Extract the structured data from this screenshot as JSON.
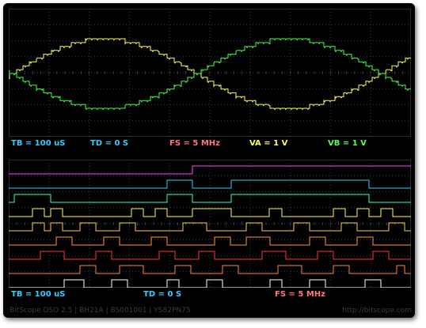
{
  "window": {
    "frame_color": "#000000"
  },
  "analog": {
    "readouts": {
      "tb": "TB = 100 uS",
      "td": "TD = 0 S",
      "fs": "FS = 5 MHz",
      "va": "VA = 1 V",
      "vb": "VB = 1 V"
    },
    "channel_a_color": "#ffff55",
    "channel_b_color": "#44ff44",
    "grid_color": "#3a3a3a"
  },
  "logic": {
    "readouts": {
      "tb": "TB = 100 uS",
      "td": "TD = 0 S",
      "fs": "FS = 5 MHz"
    },
    "channel_colors": [
      "#ff44ff",
      "#33ccff",
      "#33ffcc",
      "#ffff44",
      "#ffcc44",
      "#ff9933",
      "#ff3333",
      "#ff8833",
      "#ffffff"
    ]
  },
  "readout_colors": {
    "tb": "#33ccff",
    "td": "#33ccff",
    "fs": "#ff7777",
    "va": "#ffff55",
    "vb": "#55ff55"
  },
  "footer": {
    "left": "BitScope DSO 2.5 | BH21A | BS001001 | YS82PN75",
    "right": "http://bitscope.com"
  }
}
